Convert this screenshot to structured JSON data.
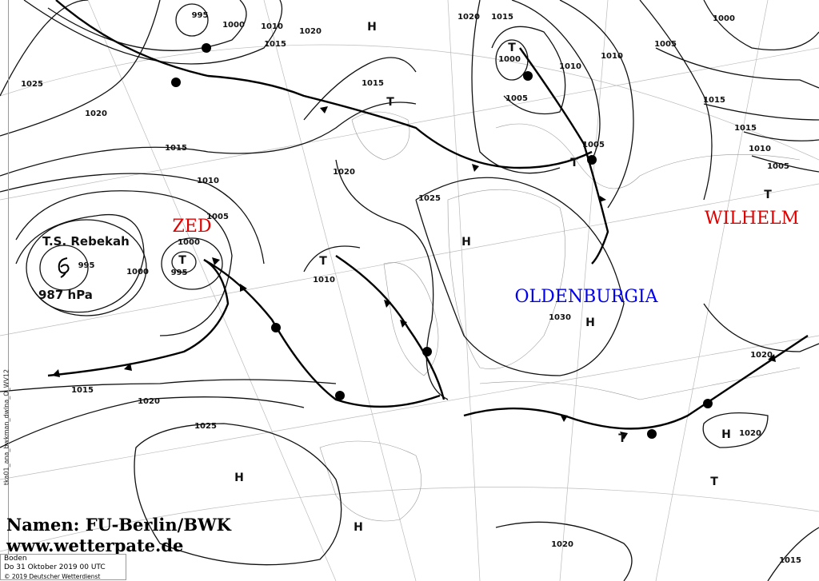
{
  "map": {
    "isobar_labels": [
      "995",
      "1000",
      "1010",
      "1015",
      "1020",
      "1025",
      "1020",
      "1015",
      "1010",
      "1005",
      "1000",
      "995",
      "1000",
      "995",
      "1015",
      "1020",
      "1025",
      "1020",
      "1015",
      "1000",
      "1005",
      "1010",
      "1010",
      "1015",
      "1020",
      "1025",
      "1005",
      "1010",
      "1030",
      "1020",
      "1020",
      "1015",
      "1020",
      "1000",
      "1005",
      "1015",
      "1015",
      "1010",
      "1005"
    ],
    "highs": [
      "H",
      "H",
      "H",
      "H",
      "H",
      "H"
    ],
    "lows": [
      "T",
      "T",
      "T",
      "T",
      "T",
      "T",
      "T",
      "T"
    ],
    "pressure_system_names": {
      "zed": "ZED",
      "wilhelm": "WILHELM",
      "oldenburgia": "OLDENBURGIA"
    },
    "name_colors": {
      "low": "#e00000",
      "high": "#0000ee"
    },
    "storm": {
      "name": "T.S. Rebekah",
      "pressure": "987 hPa",
      "icon": "tropical-storm-icon"
    }
  },
  "credit": {
    "line1": "Namen: FU-Berlin/BWK",
    "line2": "www.wetterpate.de"
  },
  "info": {
    "level": "Boden",
    "datetime": "Do 31 Oktober 2019 00 UTC",
    "copyright": "© 2019 Deutscher Wetterdienst"
  },
  "product_id": "tka01_ana_bwkman_dwlna_O_WV12"
}
